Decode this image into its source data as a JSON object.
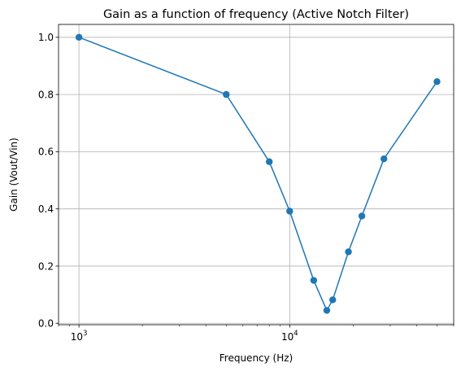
{
  "chart_data": {
    "type": "line",
    "title": "Gain as a function of frequency (Active Notch Filter)",
    "xlabel": "Frequency (Hz)",
    "ylabel": "Gain (Vout/Vin)",
    "xscale": "log",
    "xlim": [
      800,
      60000
    ],
    "ylim": [
      -0.005,
      1.045
    ],
    "xticks": [
      {
        "value": 1000,
        "base": "10",
        "exp": "3"
      },
      {
        "value": 10000,
        "base": "10",
        "exp": "4"
      }
    ],
    "yticks": [
      {
        "value": 0.0,
        "label": "0.0"
      },
      {
        "value": 0.2,
        "label": "0.2"
      },
      {
        "value": 0.4,
        "label": "0.4"
      },
      {
        "value": 0.6,
        "label": "0.6"
      },
      {
        "value": 0.8,
        "label": "0.8"
      },
      {
        "value": 1.0,
        "label": "1.0"
      }
    ],
    "grid": true,
    "marker": "circle",
    "color": "#1f77b4",
    "series": [
      {
        "x": [
          1000,
          5000,
          8000,
          10000,
          13000,
          15000,
          16000,
          19000,
          22000,
          28000,
          50000
        ],
        "y": [
          1.0,
          0.8,
          0.565,
          0.392,
          0.15,
          0.045,
          0.082,
          0.25,
          0.375,
          0.575,
          0.845
        ]
      }
    ]
  }
}
